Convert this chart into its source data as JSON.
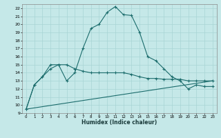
{
  "xlabel": "Humidex (Indice chaleur)",
  "bg_color": "#c5e8e8",
  "grid_color": "#a8d4d4",
  "line_color": "#1a6b6b",
  "xlim": [
    -0.5,
    23.5
  ],
  "ylim": [
    9,
    22.5
  ],
  "yticks": [
    9,
    10,
    11,
    12,
    13,
    14,
    15,
    16,
    17,
    18,
    19,
    20,
    21,
    22
  ],
  "xticks": [
    0,
    1,
    2,
    3,
    4,
    5,
    6,
    7,
    8,
    9,
    10,
    11,
    12,
    13,
    14,
    15,
    16,
    17,
    18,
    19,
    20,
    21,
    22,
    23
  ],
  "line1_x": [
    0,
    1,
    2,
    3,
    4,
    5,
    6,
    7,
    8,
    9,
    10,
    11,
    12,
    13,
    14,
    15,
    16,
    17,
    18,
    19,
    20,
    21,
    22,
    23
  ],
  "line1_y": [
    9.5,
    12.5,
    13.5,
    15.0,
    15.0,
    13.0,
    14.0,
    17.0,
    19.5,
    20.0,
    21.5,
    22.2,
    21.2,
    21.1,
    19.0,
    16.0,
    15.5,
    14.5,
    13.5,
    13.0,
    12.0,
    12.5,
    12.3,
    12.3
  ],
  "line2_x": [
    0,
    1,
    2,
    3,
    4,
    5,
    6,
    7,
    8,
    9,
    10,
    11,
    12,
    13,
    14,
    15,
    16,
    17,
    18,
    19,
    20,
    21,
    22,
    23
  ],
  "line2_y": [
    9.5,
    12.5,
    13.5,
    14.5,
    15.0,
    15.0,
    14.5,
    14.2,
    14.0,
    14.0,
    14.0,
    14.0,
    14.0,
    13.8,
    13.5,
    13.3,
    13.3,
    13.2,
    13.2,
    13.2,
    13.0,
    13.0,
    13.0,
    13.0
  ],
  "line3_x": [
    0,
    23
  ],
  "line3_y": [
    9.5,
    13.0
  ]
}
